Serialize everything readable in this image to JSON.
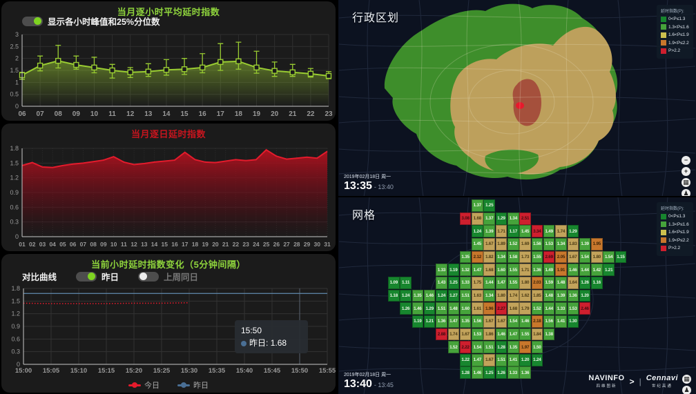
{
  "theme": {
    "accent_green": "#8ed33c",
    "accent_red": "#c8151e",
    "line_green": "#9acd32",
    "line_red": "#e41b2c",
    "line_blue": "#5d85a8",
    "panel_bg": "#1b1b1b",
    "map_bg": "#0c1220"
  },
  "hourly_panel": {
    "title": "当月逐小时平均延时指数",
    "toggle_label": "显示各小时峰值和25%分位数",
    "toggle_on": true,
    "chart_data": {
      "type": "line",
      "x": [
        "06",
        "07",
        "08",
        "09",
        "10",
        "11",
        "12",
        "13",
        "14",
        "15",
        "16",
        "17",
        "18",
        "19",
        "20",
        "21",
        "22",
        "23"
      ],
      "series": [
        {
          "name": "平均延时指数",
          "values": [
            1.3,
            1.7,
            1.9,
            1.73,
            1.62,
            1.5,
            1.42,
            1.45,
            1.52,
            1.55,
            1.62,
            1.85,
            1.88,
            1.62,
            1.48,
            1.42,
            1.36,
            1.27
          ]
        },
        {
          "name": "25%分位数",
          "values": [
            1.13,
            1.48,
            1.6,
            1.55,
            1.4,
            1.18,
            1.2,
            1.25,
            1.3,
            1.33,
            1.4,
            1.5,
            1.55,
            1.38,
            1.25,
            1.25,
            1.22,
            1.15
          ]
        },
        {
          "name": "峰值",
          "values": [
            1.42,
            2.1,
            2.55,
            2.1,
            2.05,
            1.75,
            1.62,
            1.78,
            1.95,
            2.0,
            2.2,
            2.62,
            2.68,
            2.3,
            1.85,
            1.75,
            1.58,
            1.45
          ]
        }
      ],
      "ylim": [
        0,
        3
      ],
      "yticks": [
        0,
        0.5,
        1,
        1.5,
        2,
        2.5,
        3
      ]
    }
  },
  "daily_panel": {
    "title": "当月逐日延时指数",
    "chart_data": {
      "type": "area",
      "x": [
        "01",
        "02",
        "03",
        "04",
        "05",
        "06",
        "07",
        "08",
        "09",
        "10",
        "11",
        "12",
        "13",
        "14",
        "15",
        "16",
        "17",
        "18",
        "19",
        "20",
        "21",
        "22",
        "23",
        "24",
        "25",
        "26",
        "27",
        "28",
        "29",
        "30",
        "31"
      ],
      "values": [
        1.45,
        1.51,
        1.42,
        1.41,
        1.45,
        1.48,
        1.5,
        1.53,
        1.56,
        1.63,
        1.52,
        1.47,
        1.49,
        1.52,
        1.54,
        1.56,
        1.72,
        1.57,
        1.52,
        1.51,
        1.54,
        1.57,
        1.55,
        1.57,
        1.77,
        1.64,
        1.58,
        1.6,
        1.62,
        1.6,
        1.74
      ],
      "ylim": [
        0,
        1.8
      ],
      "yticks": [
        0,
        0.3,
        0.6,
        0.9,
        1.2,
        1.5,
        1.8
      ]
    }
  },
  "current_panel": {
    "title": "当前小时延时指数变化（5分钟间隔）",
    "compare_label": "对比曲线",
    "toggles": [
      {
        "label": "昨日",
        "active": true
      },
      {
        "label": "上周同日",
        "active": false
      }
    ],
    "chart_data": {
      "type": "line",
      "x": [
        "15:00",
        "15:05",
        "15:10",
        "15:15",
        "15:20",
        "15:25",
        "15:30",
        "15:35",
        "15:40",
        "15:45",
        "15:50",
        "15:55"
      ],
      "series": [
        {
          "name": "今日",
          "color": "#e41b2c",
          "values": [
            1.45,
            1.44,
            1.44,
            1.44,
            1.45,
            1.45,
            1.46
          ]
        },
        {
          "name": "昨日",
          "color": "#5d85a8",
          "values": [
            1.68,
            1.68,
            1.68,
            1.68,
            1.68,
            1.68,
            1.68,
            1.68,
            1.68,
            1.68,
            1.68,
            1.68
          ]
        }
      ],
      "ylim": [
        0,
        1.8
      ],
      "yticks": [
        0,
        0.3,
        0.6,
        0.9,
        1.2,
        1.5,
        1.8
      ],
      "pointer_index": 10
    },
    "tooltip": {
      "time": "15:50",
      "series_label": "昨日:",
      "value": "1.68"
    },
    "legend": [
      {
        "label": "今日",
        "color": "#e41b2c"
      },
      {
        "label": "昨日",
        "color": "#4a6f95"
      }
    ]
  },
  "admin_map": {
    "title": "行政区划",
    "legend": {
      "title": "延时指数(P):",
      "items": [
        {
          "range": "0<P≤1.3",
          "color": "#17862e"
        },
        {
          "range": "1.3<P≤1.6",
          "color": "#46a33b"
        },
        {
          "range": "1.6<P≤1.9",
          "color": "#cdc04e"
        },
        {
          "range": "1.9<P≤2.2",
          "color": "#c8772c"
        },
        {
          "range": "P>2.2",
          "color": "#ce1f2e"
        }
      ]
    },
    "date": "2019年02月18日 周一",
    "time_start": "13:35",
    "time_end": "- 13:40",
    "region_colors": {
      "green": "#3e8e2b",
      "tan": "#bda05c",
      "rust": "#a5503c",
      "red": "#e8192c"
    },
    "controls": [
      {
        "name": "zoom-out",
        "glyph": "−"
      },
      {
        "name": "zoom-in",
        "glyph": "+"
      },
      {
        "name": "overview",
        "glyph": "▦"
      },
      {
        "name": "streetview",
        "glyph": "♟"
      }
    ]
  },
  "grid_map": {
    "title": "网格",
    "legend": {
      "title": "延时指数(P):",
      "items": [
        {
          "range": "0<P≤1.3",
          "color": "#17862e"
        },
        {
          "range": "1.3<P≤1.6",
          "color": "#46a33b"
        },
        {
          "range": "1.6<P≤1.9",
          "color": "#cdc04e"
        },
        {
          "range": "1.9<P≤2.2",
          "color": "#c8772c"
        },
        {
          "range": "P>2.2",
          "color": "#ce1f2e"
        }
      ]
    },
    "date": "2019年02月18日 周一",
    "time_start": "13:40",
    "time_end": "- 13:45",
    "bands": {
      "thresholds": [
        1.3,
        1.6,
        1.9,
        2.2
      ],
      "colors": [
        "#17862e",
        "#46a33b",
        "#c2a35b",
        "#c8772c",
        "#ce1f2e"
      ],
      "text_colors": [
        "#eaf5e6",
        "#eef7e8",
        "#4a3a14",
        "#3d2408",
        "#400a10"
      ]
    },
    "rows_col_value": [
      [
        [
          7,
          1.37
        ],
        [
          8,
          1.25
        ]
      ],
      [
        [
          6,
          3.08
        ],
        [
          7,
          1.68
        ],
        [
          8,
          1.37
        ],
        [
          9,
          1.29
        ],
        [
          10,
          1.34
        ],
        [
          11,
          2.51
        ]
      ],
      [
        [
          7,
          1.24
        ],
        [
          8,
          1.39
        ],
        [
          9,
          1.71
        ],
        [
          10,
          1.17
        ],
        [
          11,
          1.45
        ],
        [
          12,
          3.34
        ],
        [
          13,
          1.49
        ],
        [
          14,
          1.74
        ],
        [
          15,
          1.29
        ]
      ],
      [
        [
          7,
          1.45
        ],
        [
          8,
          1.67
        ],
        [
          9,
          1.89
        ],
        [
          10,
          1.52
        ],
        [
          11,
          1.69
        ],
        [
          12,
          1.56
        ],
        [
          13,
          1.53
        ],
        [
          14,
          1.34
        ],
        [
          15,
          1.83
        ],
        [
          16,
          1.39
        ],
        [
          17,
          1.95
        ]
      ],
      [
        [
          6,
          1.35
        ],
        [
          7,
          2.12
        ],
        [
          8,
          1.82
        ],
        [
          9,
          1.34
        ],
        [
          10,
          1.58
        ],
        [
          11,
          1.73
        ],
        [
          12,
          1.55
        ],
        [
          13,
          2.69
        ],
        [
          14,
          2.05
        ],
        [
          15,
          1.67
        ],
        [
          16,
          1.54
        ],
        [
          17,
          1.8
        ],
        [
          18,
          1.54
        ],
        [
          19,
          1.15
        ]
      ],
      [
        [
          4,
          1.33
        ],
        [
          5,
          1.19
        ],
        [
          6,
          1.32
        ],
        [
          7,
          1.47
        ],
        [
          8,
          1.68
        ],
        [
          9,
          1.6
        ],
        [
          10,
          1.55
        ],
        [
          11,
          1.71
        ],
        [
          12,
          1.36
        ],
        [
          13,
          1.49
        ],
        [
          14,
          1.91
        ],
        [
          15,
          1.46
        ],
        [
          16,
          1.44
        ],
        [
          17,
          1.42
        ],
        [
          18,
          1.21
        ]
      ],
      [
        [
          0,
          1.09
        ],
        [
          1,
          1.11
        ],
        [
          4,
          1.43
        ],
        [
          5,
          1.25
        ],
        [
          6,
          1.33
        ],
        [
          7,
          1.75
        ],
        [
          8,
          1.44
        ],
        [
          9,
          1.47
        ],
        [
          10,
          1.55
        ],
        [
          11,
          1.8
        ],
        [
          12,
          2.03
        ],
        [
          13,
          1.59
        ],
        [
          14,
          1.48
        ],
        [
          15,
          1.64
        ],
        [
          16,
          1.26
        ],
        [
          17,
          1.16
        ]
      ],
      [
        [
          0,
          1.18
        ],
        [
          1,
          1.24
        ],
        [
          2,
          1.35
        ],
        [
          3,
          1.46
        ],
        [
          4,
          1.24
        ],
        [
          5,
          1.27
        ],
        [
          6,
          1.51
        ],
        [
          7,
          1.63
        ],
        [
          8,
          1.34
        ],
        [
          9,
          1.8
        ],
        [
          10,
          1.74
        ],
        [
          11,
          1.62
        ],
        [
          12,
          1.85
        ],
        [
          13,
          1.48
        ],
        [
          14,
          1.39
        ],
        [
          15,
          1.36
        ],
        [
          16,
          1.2
        ]
      ],
      [
        [
          1,
          1.26
        ],
        [
          2,
          1.46
        ],
        [
          3,
          1.29
        ],
        [
          4,
          1.51
        ],
        [
          5,
          1.48
        ],
        [
          6,
          1.6
        ],
        [
          7,
          1.61
        ],
        [
          8,
          1.96
        ],
        [
          9,
          2.27
        ],
        [
          10,
          1.68
        ],
        [
          11,
          1.79
        ],
        [
          12,
          1.52
        ],
        [
          13,
          1.44
        ],
        [
          14,
          1.33
        ],
        [
          15,
          1.53
        ],
        [
          16,
          2.46
        ]
      ],
      [
        [
          2,
          1.19
        ],
        [
          3,
          1.21
        ],
        [
          4,
          1.36
        ],
        [
          5,
          1.47
        ],
        [
          6,
          1.35
        ],
        [
          7,
          1.56
        ],
        [
          8,
          1.67
        ],
        [
          9,
          1.67
        ],
        [
          10,
          1.54
        ],
        [
          11,
          1.46
        ],
        [
          12,
          2.18
        ],
        [
          13,
          1.56
        ],
        [
          14,
          1.41
        ],
        [
          15,
          1.3
        ]
      ],
      [
        [
          4,
          2.88
        ],
        [
          5,
          1.74
        ],
        [
          6,
          1.67
        ],
        [
          7,
          1.53
        ],
        [
          8,
          1.86
        ],
        [
          9,
          1.46
        ],
        [
          10,
          1.47
        ],
        [
          11,
          1.55
        ],
        [
          12,
          1.84
        ],
        [
          13,
          1.38
        ]
      ],
      [
        [
          5,
          1.52
        ],
        [
          6,
          2.22
        ],
        [
          7,
          1.54
        ],
        [
          8,
          1.51
        ],
        [
          9,
          1.28
        ],
        [
          10,
          1.35
        ],
        [
          11,
          1.97
        ],
        [
          12,
          1.5
        ]
      ],
      [
        [
          6,
          1.22
        ],
        [
          7,
          1.47
        ],
        [
          8,
          1.67
        ],
        [
          9,
          1.51
        ],
        [
          10,
          1.41
        ],
        [
          11,
          1.2
        ],
        [
          12,
          1.24
        ]
      ],
      [
        [
          6,
          1.28
        ],
        [
          7,
          1.46
        ],
        [
          8,
          1.25
        ],
        [
          9,
          1.26
        ],
        [
          10,
          1.33
        ],
        [
          11,
          1.36
        ]
      ]
    ],
    "controls": [
      {
        "name": "overview",
        "glyph": "▦"
      },
      {
        "name": "streetview",
        "glyph": "♟"
      }
    ],
    "logos": {
      "navinfo": "NAVINFO",
      "navinfo_sub": "四维图新",
      "arrow": ">",
      "divider": "|",
      "cennavi": "Cennavi",
      "cennavi_sub": "世纪高通"
    }
  }
}
